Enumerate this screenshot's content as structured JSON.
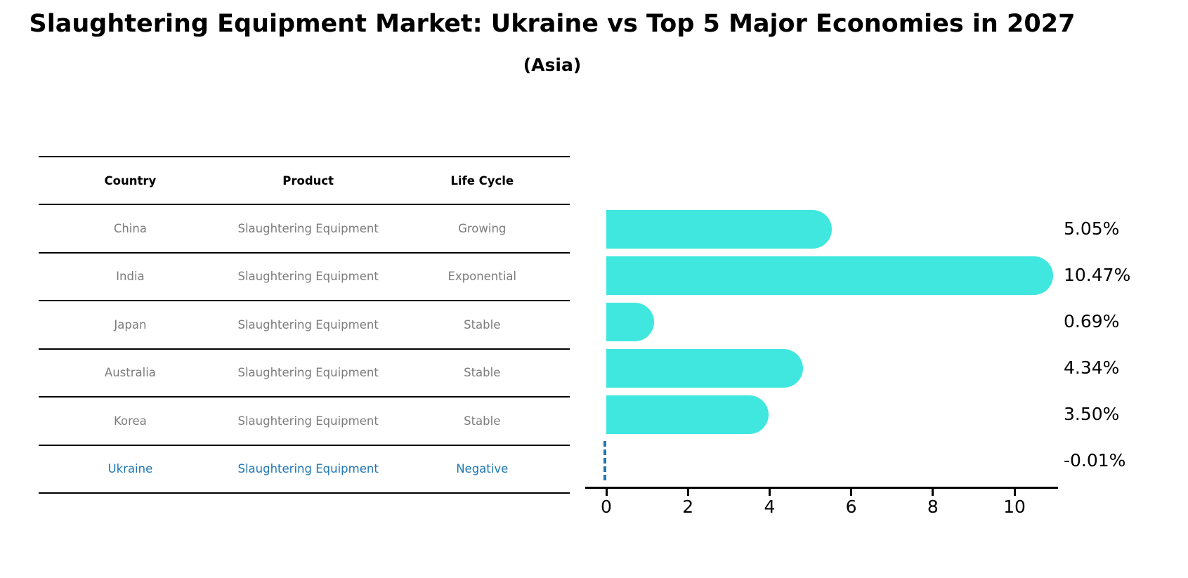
{
  "title": "Slaughtering Equipment Market: Ukraine vs Top 5 Major Economies in 2027",
  "subtitle": "(Asia)",
  "colors": {
    "bar": "#3fe7de",
    "highlight": "#1f77b4",
    "row_text": "#7c7c7c",
    "header_text": "#000000",
    "axis": "#000000"
  },
  "table": {
    "headers": [
      "Country",
      "Product",
      "Life Cycle"
    ],
    "rows": [
      {
        "country": "China",
        "product": "Slaughtering Equipment",
        "life_cycle": "Growing",
        "highlight": false
      },
      {
        "country": "India",
        "product": "Slaughtering Equipment",
        "life_cycle": "Exponential",
        "highlight": false
      },
      {
        "country": "Japan",
        "product": "Slaughtering Equipment",
        "life_cycle": "Stable",
        "highlight": false
      },
      {
        "country": "Australia",
        "product": "Slaughtering Equipment",
        "life_cycle": "Stable",
        "highlight": false
      },
      {
        "country": "Korea",
        "product": "Slaughtering Equipment",
        "life_cycle": "Stable",
        "highlight": false
      },
      {
        "country": "Ukraine",
        "product": "Slaughtering Equipment",
        "life_cycle": "Negative",
        "highlight": true
      }
    ]
  },
  "chart_data": {
    "type": "bar",
    "orientation": "horizontal",
    "title": "Slaughtering Equipment Market: Ukraine vs Top 5 Major Economies in 2027 (Asia)",
    "categories": [
      "China",
      "India",
      "Japan",
      "Australia",
      "Korea",
      "Ukraine"
    ],
    "values": [
      5.05,
      10.47,
      0.69,
      4.34,
      3.5,
      -0.01
    ],
    "labels": [
      "5.05%",
      "10.47%",
      "0.69%",
      "4.34%",
      "3.50%",
      "-0.01%"
    ],
    "xlabel": "",
    "ylabel": "",
    "xticks": [
      0,
      2,
      4,
      6,
      8,
      10
    ],
    "xlim": [
      -0.5,
      11.1
    ],
    "grid": false,
    "legend": false,
    "bar_color": "#3fe7de",
    "highlight_color": "#1f77b4",
    "highlight_category": "Ukraine"
  }
}
